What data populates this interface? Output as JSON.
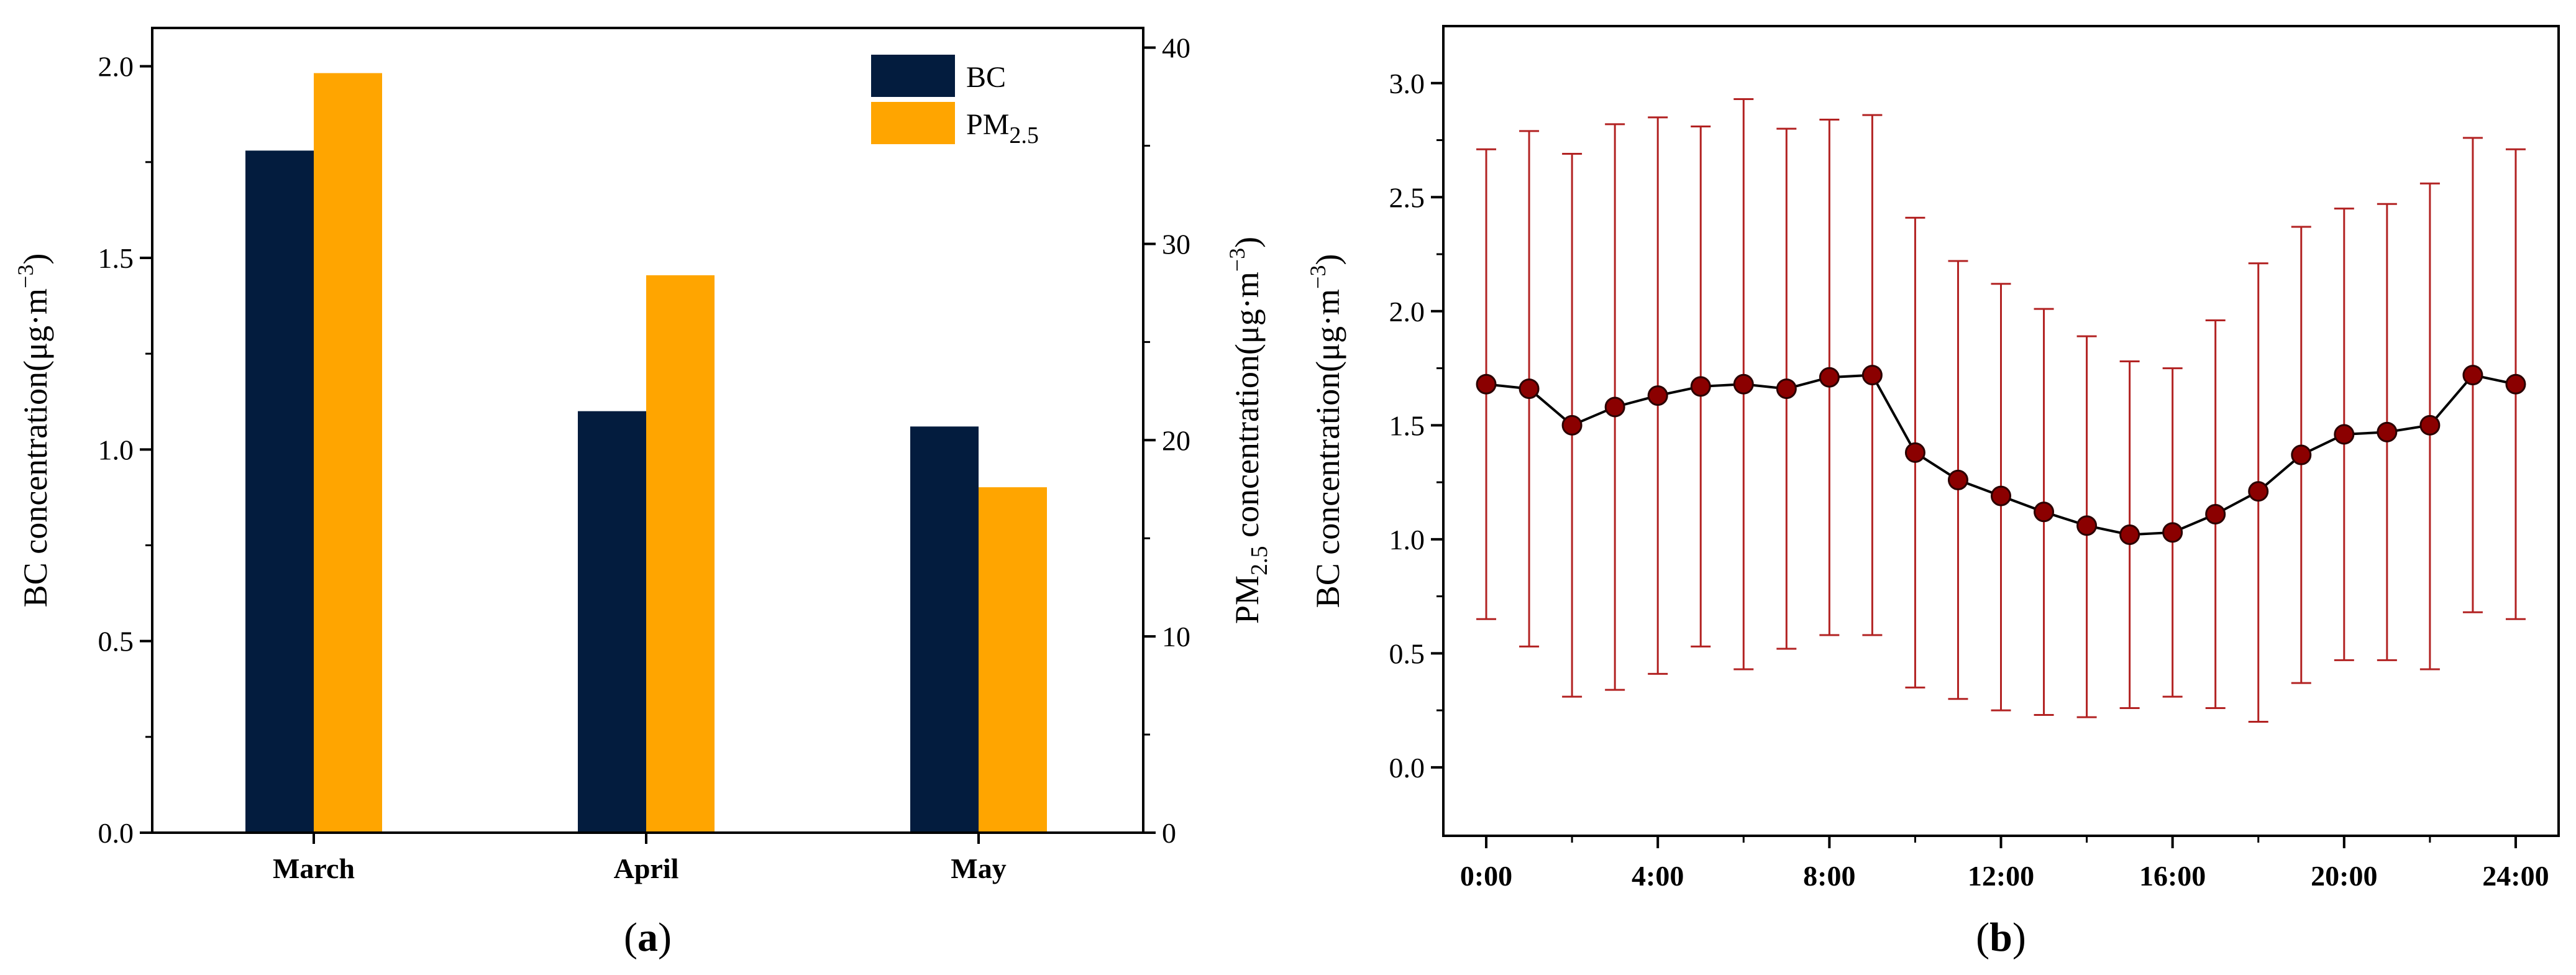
{
  "chart_data": [
    {
      "panel_label": "a",
      "type": "bar",
      "categories": [
        "March",
        "April",
        "May"
      ],
      "series": [
        {
          "name": "BC",
          "axis": "left",
          "color": "#031c3e",
          "values": [
            1.78,
            1.1,
            1.06
          ]
        },
        {
          "name": "PM",
          "name_sub": "2.5",
          "axis": "right",
          "color": "#ffa500",
          "values": [
            38.7,
            28.4,
            17.6
          ]
        }
      ],
      "ylabel": {
        "text": "BC concentration(μg·m",
        "sup": "−3",
        "close": ")"
      },
      "y2label": {
        "pre": "PM",
        "sub": "2.5",
        "text": " concentration(μg·m",
        "sup": "−3",
        "close": ")"
      },
      "ylim": [
        0,
        2.1
      ],
      "y2lim": [
        0,
        41.0
      ],
      "yticks": [
        "0.0",
        "0.5",
        "1.0",
        "1.5",
        "2.0"
      ],
      "y2ticks": [
        "0",
        "10",
        "20",
        "30",
        "40"
      ],
      "legend": {
        "position": "top-right",
        "labels": [
          "BC",
          "PM"
        ],
        "sub": [
          null,
          "2.5"
        ]
      }
    },
    {
      "panel_label": "b",
      "type": "line",
      "x": [
        0,
        1,
        2,
        3,
        4,
        5,
        6,
        7,
        8,
        9,
        10,
        11,
        12,
        13,
        14,
        15,
        16,
        17,
        18,
        19,
        20,
        21,
        22,
        23,
        24
      ],
      "y": [
        1.68,
        1.66,
        1.5,
        1.58,
        1.63,
        1.67,
        1.68,
        1.66,
        1.71,
        1.72,
        1.38,
        1.26,
        1.19,
        1.12,
        1.06,
        1.02,
        1.03,
        1.11,
        1.21,
        1.37,
        1.46,
        1.47,
        1.5,
        1.72,
        1.68
      ],
      "error_low": [
        0.65,
        0.53,
        0.31,
        0.34,
        0.41,
        0.53,
        0.43,
        0.52,
        0.58,
        0.58,
        0.35,
        0.3,
        0.25,
        0.23,
        0.22,
        0.26,
        0.31,
        0.26,
        0.2,
        0.37,
        0.47,
        0.47,
        0.43,
        0.68,
        0.65
      ],
      "error_high": [
        2.71,
        2.79,
        2.69,
        2.82,
        2.85,
        2.81,
        2.93,
        2.8,
        2.84,
        2.86,
        2.41,
        2.22,
        2.12,
        2.01,
        1.89,
        1.78,
        1.75,
        1.96,
        2.21,
        2.37,
        2.45,
        2.47,
        2.56,
        2.76,
        2.71
      ],
      "xticks": [
        "0:00",
        "4:00",
        "8:00",
        "12:00",
        "16:00",
        "20:00",
        "24:00"
      ],
      "yticks": [
        "0.0",
        "0.5",
        "1.0",
        "1.5",
        "2.0",
        "2.5",
        "3.0"
      ],
      "xlim": [
        -1.0,
        25.0
      ],
      "ylim": [
        -0.3,
        3.25
      ],
      "ylabel": {
        "text": "BC concentration(μg·m",
        "sup": "−3",
        "close": ")"
      },
      "line_color": "#000000",
      "marker_color": "#8b0000",
      "error_color": "#b22222"
    }
  ]
}
